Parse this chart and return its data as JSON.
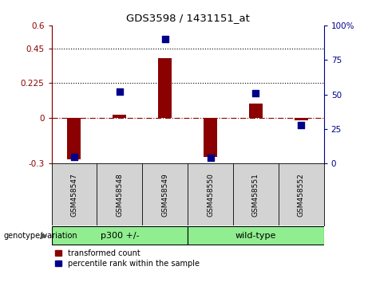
{
  "title": "GDS3598 / 1431151_at",
  "samples": [
    "GSM458547",
    "GSM458548",
    "GSM458549",
    "GSM458550",
    "GSM458551",
    "GSM458552"
  ],
  "transformed_counts": [
    -0.27,
    0.02,
    0.385,
    -0.255,
    0.09,
    -0.02
  ],
  "percentile_ranks": [
    5,
    52,
    90,
    4,
    51,
    28
  ],
  "groups": [
    "p300 +/-",
    "p300 +/-",
    "p300 +/-",
    "wild-type",
    "wild-type",
    "wild-type"
  ],
  "bar_color": "#8B0000",
  "dot_color": "#00008B",
  "ylim_left": [
    -0.3,
    0.6
  ],
  "ylim_right": [
    0,
    100
  ],
  "yticks_left": [
    -0.3,
    0,
    0.225,
    0.45,
    0.6
  ],
  "ytick_labels_left": [
    "-0.3",
    "0",
    "0.225",
    "0.45",
    "0.6"
  ],
  "yticks_right": [
    0,
    25,
    50,
    75,
    100
  ],
  "ytick_labels_right": [
    "0",
    "25",
    "50",
    "75",
    "100%"
  ],
  "hline_y": [
    0.225,
    0.45
  ],
  "zero_line_y": 0,
  "plot_bg_color": "#ffffff",
  "xlabel_bg_color": "#d3d3d3",
  "green_color": "#90EE90",
  "label_group_row": "genotype/variation",
  "legend_bar": "transformed count",
  "legend_dot": "percentile rank within the sample",
  "bar_width": 0.3,
  "dot_size": 28
}
